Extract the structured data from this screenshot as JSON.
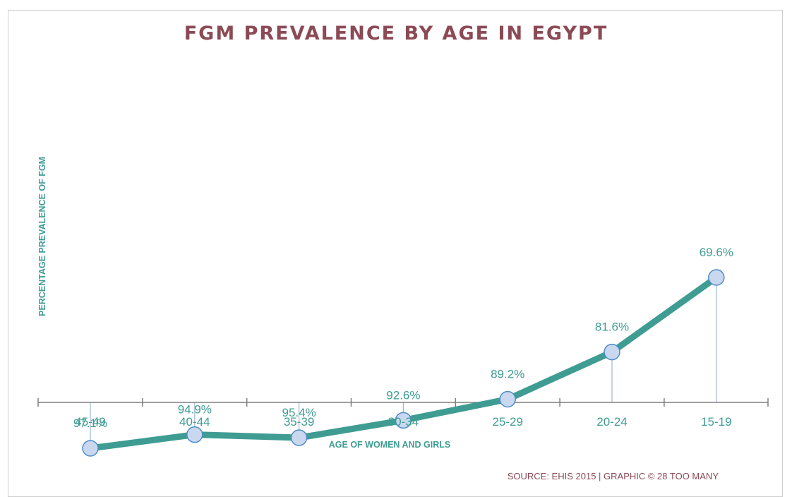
{
  "chart_data": {
    "type": "line",
    "title": "FGM PREVALENCE BY AGE IN EGYPT",
    "xlabel": "AGE OF WOMEN AND GIRLS",
    "ylabel": "PERCENTAGE PREVALENCE OF FGM",
    "categories": [
      "45-49",
      "40-44",
      "35-39",
      "30-34",
      "25-29",
      "20-24",
      "15-19"
    ],
    "values": [
      97.1,
      94.9,
      95.4,
      92.6,
      89.2,
      81.6,
      69.6
    ],
    "value_labels": [
      "97.1%",
      "94.9%",
      "95.4%",
      "92.6%",
      "89.2%",
      "81.6%",
      "69.6%"
    ],
    "grid": false,
    "legend": "none",
    "source": "SOURCE: EHIS 2015 | GRAPHIC © 28 TOO MANY",
    "colors": {
      "line": "#3f9c93",
      "marker_fill": "#c9d8ef",
      "marker_stroke": "#4f8cc9",
      "title": "#8b4a55",
      "drop_line": "#9fb7d4"
    }
  }
}
